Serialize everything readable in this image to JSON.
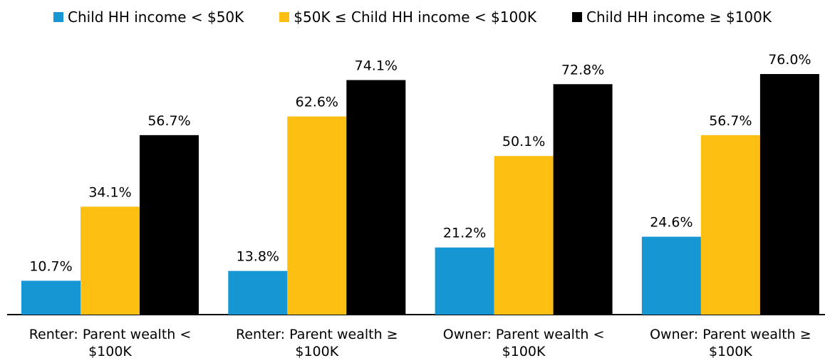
{
  "chart_data": {
    "type": "bar",
    "categories": [
      "Renter: Parent wealth < $100K",
      "Renter: Parent wealth ≥ $100K",
      "Owner: Parent wealth < $100K",
      "Owner: Parent wealth ≥ $100K"
    ],
    "series": [
      {
        "name": "Child HH income < $50K",
        "color": "#1696d2",
        "values": [
          10.7,
          13.8,
          21.2,
          24.6
        ],
        "value_labels": [
          "10.7%",
          "13.8%",
          "21.2%",
          "24.6%"
        ]
      },
      {
        "name": "$50K ≤ Child HH income < $100K",
        "color": "#fdbf11",
        "values": [
          34.1,
          62.6,
          50.1,
          56.7
        ],
        "value_labels": [
          "34.1%",
          "62.6%",
          "50.1%",
          "56.7%"
        ]
      },
      {
        "name": "Child HH income ≥ $100K",
        "color": "#000000",
        "values": [
          56.7,
          74.1,
          72.8,
          76.0
        ],
        "value_labels": [
          "56.7%",
          "74.1%",
          "72.8%",
          "76.0%"
        ]
      }
    ],
    "legend": "top"
  }
}
